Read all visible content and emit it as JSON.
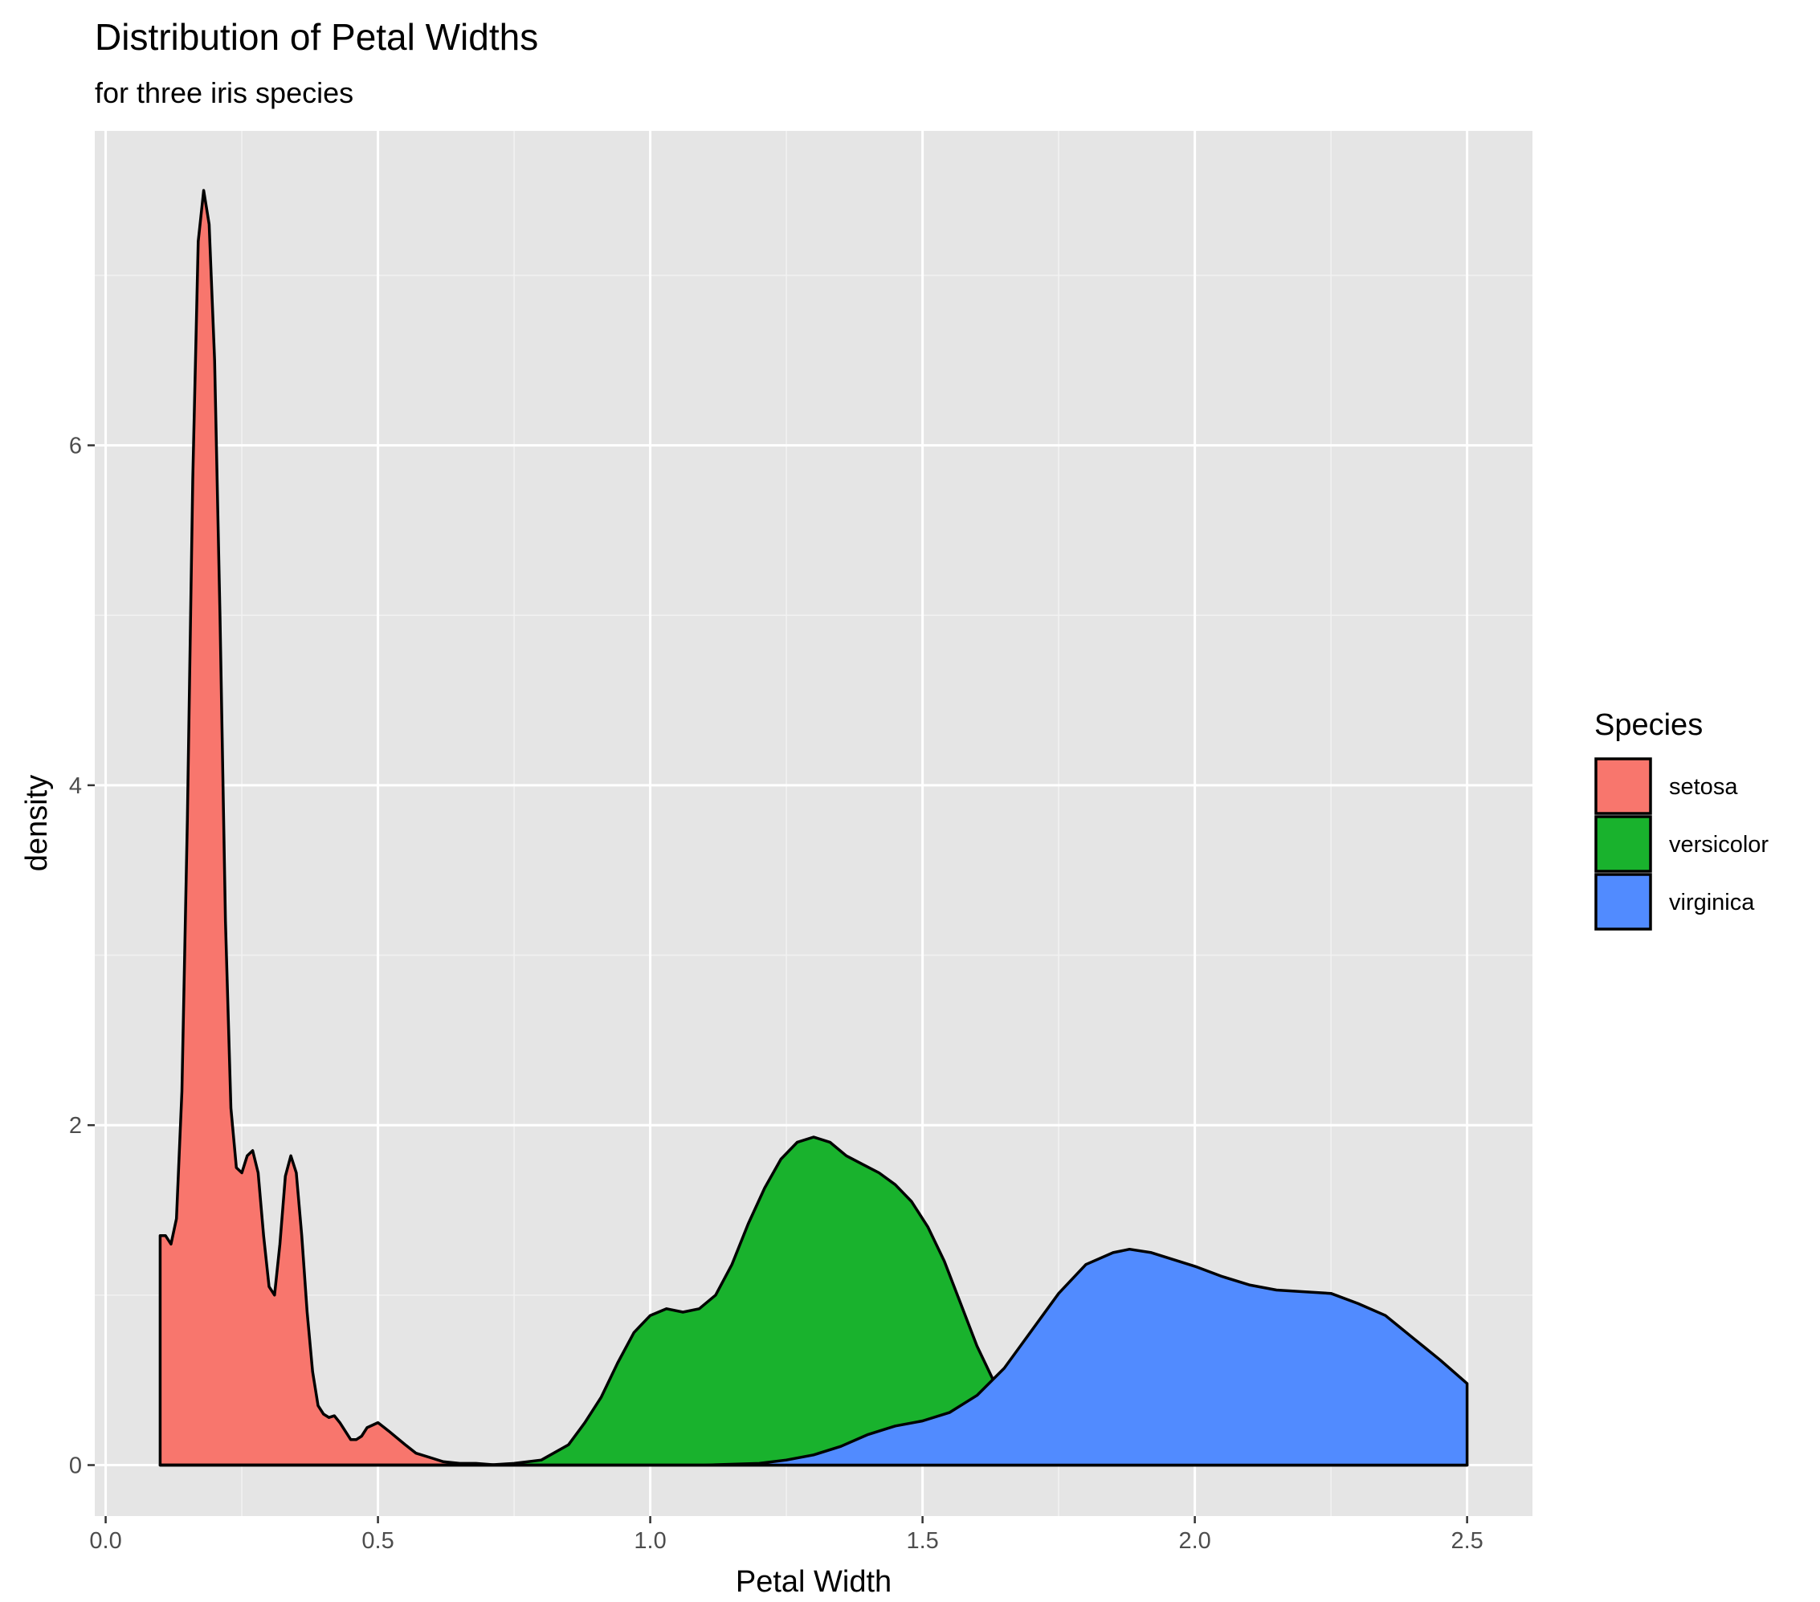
{
  "chart_data": {
    "type": "area",
    "title": "Distribution of Petal Widths",
    "subtitle": "for three iris species",
    "xlabel": "Petal Width",
    "ylabel": "density",
    "xlim": [
      -0.02,
      2.62
    ],
    "ylim": [
      -0.3,
      7.85
    ],
    "x_ticks": [
      0.0,
      0.5,
      1.0,
      1.5,
      2.0,
      2.5
    ],
    "x_tick_labels": [
      "0.0",
      "0.5",
      "1.0",
      "1.5",
      "2.0",
      "2.5"
    ],
    "y_ticks": [
      0,
      2,
      4,
      6
    ],
    "y_tick_labels": [
      "0",
      "2",
      "4",
      "6"
    ],
    "grid": true,
    "panel_background": "#e5e5e5",
    "legend": {
      "title": "Species",
      "placement": "right"
    },
    "series": [
      {
        "name": "setosa",
        "color": "#f8766d",
        "x": [
          0.1,
          0.11,
          0.12,
          0.13,
          0.14,
          0.15,
          0.16,
          0.17,
          0.18,
          0.19,
          0.2,
          0.21,
          0.22,
          0.23,
          0.24,
          0.25,
          0.26,
          0.27,
          0.28,
          0.29,
          0.3,
          0.31,
          0.32,
          0.33,
          0.34,
          0.35,
          0.36,
          0.37,
          0.38,
          0.39,
          0.4,
          0.41,
          0.42,
          0.43,
          0.44,
          0.45,
          0.46,
          0.47,
          0.48,
          0.5,
          0.52,
          0.55,
          0.57,
          0.6,
          0.62,
          0.65,
          0.68,
          0.72,
          0.76,
          0.82,
          0.9,
          1.0,
          1.1,
          1.2,
          1.3,
          1.4,
          1.5,
          1.6,
          1.7,
          1.8,
          1.9,
          2.0,
          2.1,
          2.2,
          2.3,
          2.4,
          2.5
        ],
        "values": [
          1.35,
          1.35,
          1.3,
          1.45,
          2.2,
          3.8,
          5.8,
          7.2,
          7.5,
          7.3,
          6.5,
          5.0,
          3.2,
          2.1,
          1.75,
          1.72,
          1.82,
          1.85,
          1.72,
          1.35,
          1.05,
          1.0,
          1.3,
          1.7,
          1.82,
          1.72,
          1.35,
          0.9,
          0.55,
          0.35,
          0.3,
          0.28,
          0.29,
          0.25,
          0.2,
          0.15,
          0.15,
          0.17,
          0.22,
          0.25,
          0.2,
          0.12,
          0.07,
          0.04,
          0.02,
          0.01,
          0.01,
          0.0,
          0.0,
          0.0,
          0.0,
          0.0,
          0.0,
          0.0,
          0.0,
          0.0,
          0.0,
          0.0,
          0.0,
          0.0,
          0.0,
          0.0,
          0.0,
          0.0,
          0.0,
          0.0,
          0.0
        ]
      },
      {
        "name": "versicolor",
        "color": "#19b22d",
        "x": [
          0.1,
          0.3,
          0.5,
          0.6,
          0.65,
          0.7,
          0.75,
          0.8,
          0.85,
          0.88,
          0.91,
          0.94,
          0.97,
          1.0,
          1.03,
          1.06,
          1.09,
          1.12,
          1.15,
          1.18,
          1.21,
          1.24,
          1.27,
          1.3,
          1.33,
          1.36,
          1.39,
          1.42,
          1.45,
          1.48,
          1.51,
          1.54,
          1.57,
          1.6,
          1.63,
          1.66,
          1.7,
          1.74,
          1.78,
          1.82,
          1.86,
          1.9,
          1.95,
          2.0,
          2.1,
          2.2,
          2.3,
          2.4,
          2.5
        ],
        "values": [
          0.0,
          0.0,
          0.0,
          0.0,
          0.0,
          0.0,
          0.01,
          0.03,
          0.12,
          0.25,
          0.4,
          0.6,
          0.78,
          0.88,
          0.92,
          0.9,
          0.92,
          1.0,
          1.18,
          1.42,
          1.63,
          1.8,
          1.9,
          1.93,
          1.9,
          1.82,
          1.77,
          1.72,
          1.65,
          1.55,
          1.4,
          1.2,
          0.95,
          0.7,
          0.5,
          0.35,
          0.22,
          0.12,
          0.06,
          0.03,
          0.01,
          0.0,
          0.0,
          0.0,
          0.0,
          0.0,
          0.0,
          0.0,
          0.0
        ]
      },
      {
        "name": "virginica",
        "color": "#518bff",
        "x": [
          0.1,
          0.5,
          1.0,
          1.1,
          1.2,
          1.25,
          1.3,
          1.35,
          1.4,
          1.45,
          1.5,
          1.55,
          1.6,
          1.65,
          1.7,
          1.75,
          1.8,
          1.85,
          1.88,
          1.92,
          1.95,
          2.0,
          2.05,
          2.1,
          2.15,
          2.2,
          2.25,
          2.3,
          2.35,
          2.4,
          2.45,
          2.5
        ],
        "values": [
          0.0,
          0.0,
          0.0,
          0.0,
          0.01,
          0.03,
          0.06,
          0.11,
          0.18,
          0.23,
          0.26,
          0.31,
          0.41,
          0.57,
          0.79,
          1.01,
          1.18,
          1.25,
          1.27,
          1.25,
          1.22,
          1.17,
          1.11,
          1.06,
          1.03,
          1.02,
          1.01,
          0.95,
          0.88,
          0.75,
          0.62,
          0.48
        ]
      }
    ]
  }
}
